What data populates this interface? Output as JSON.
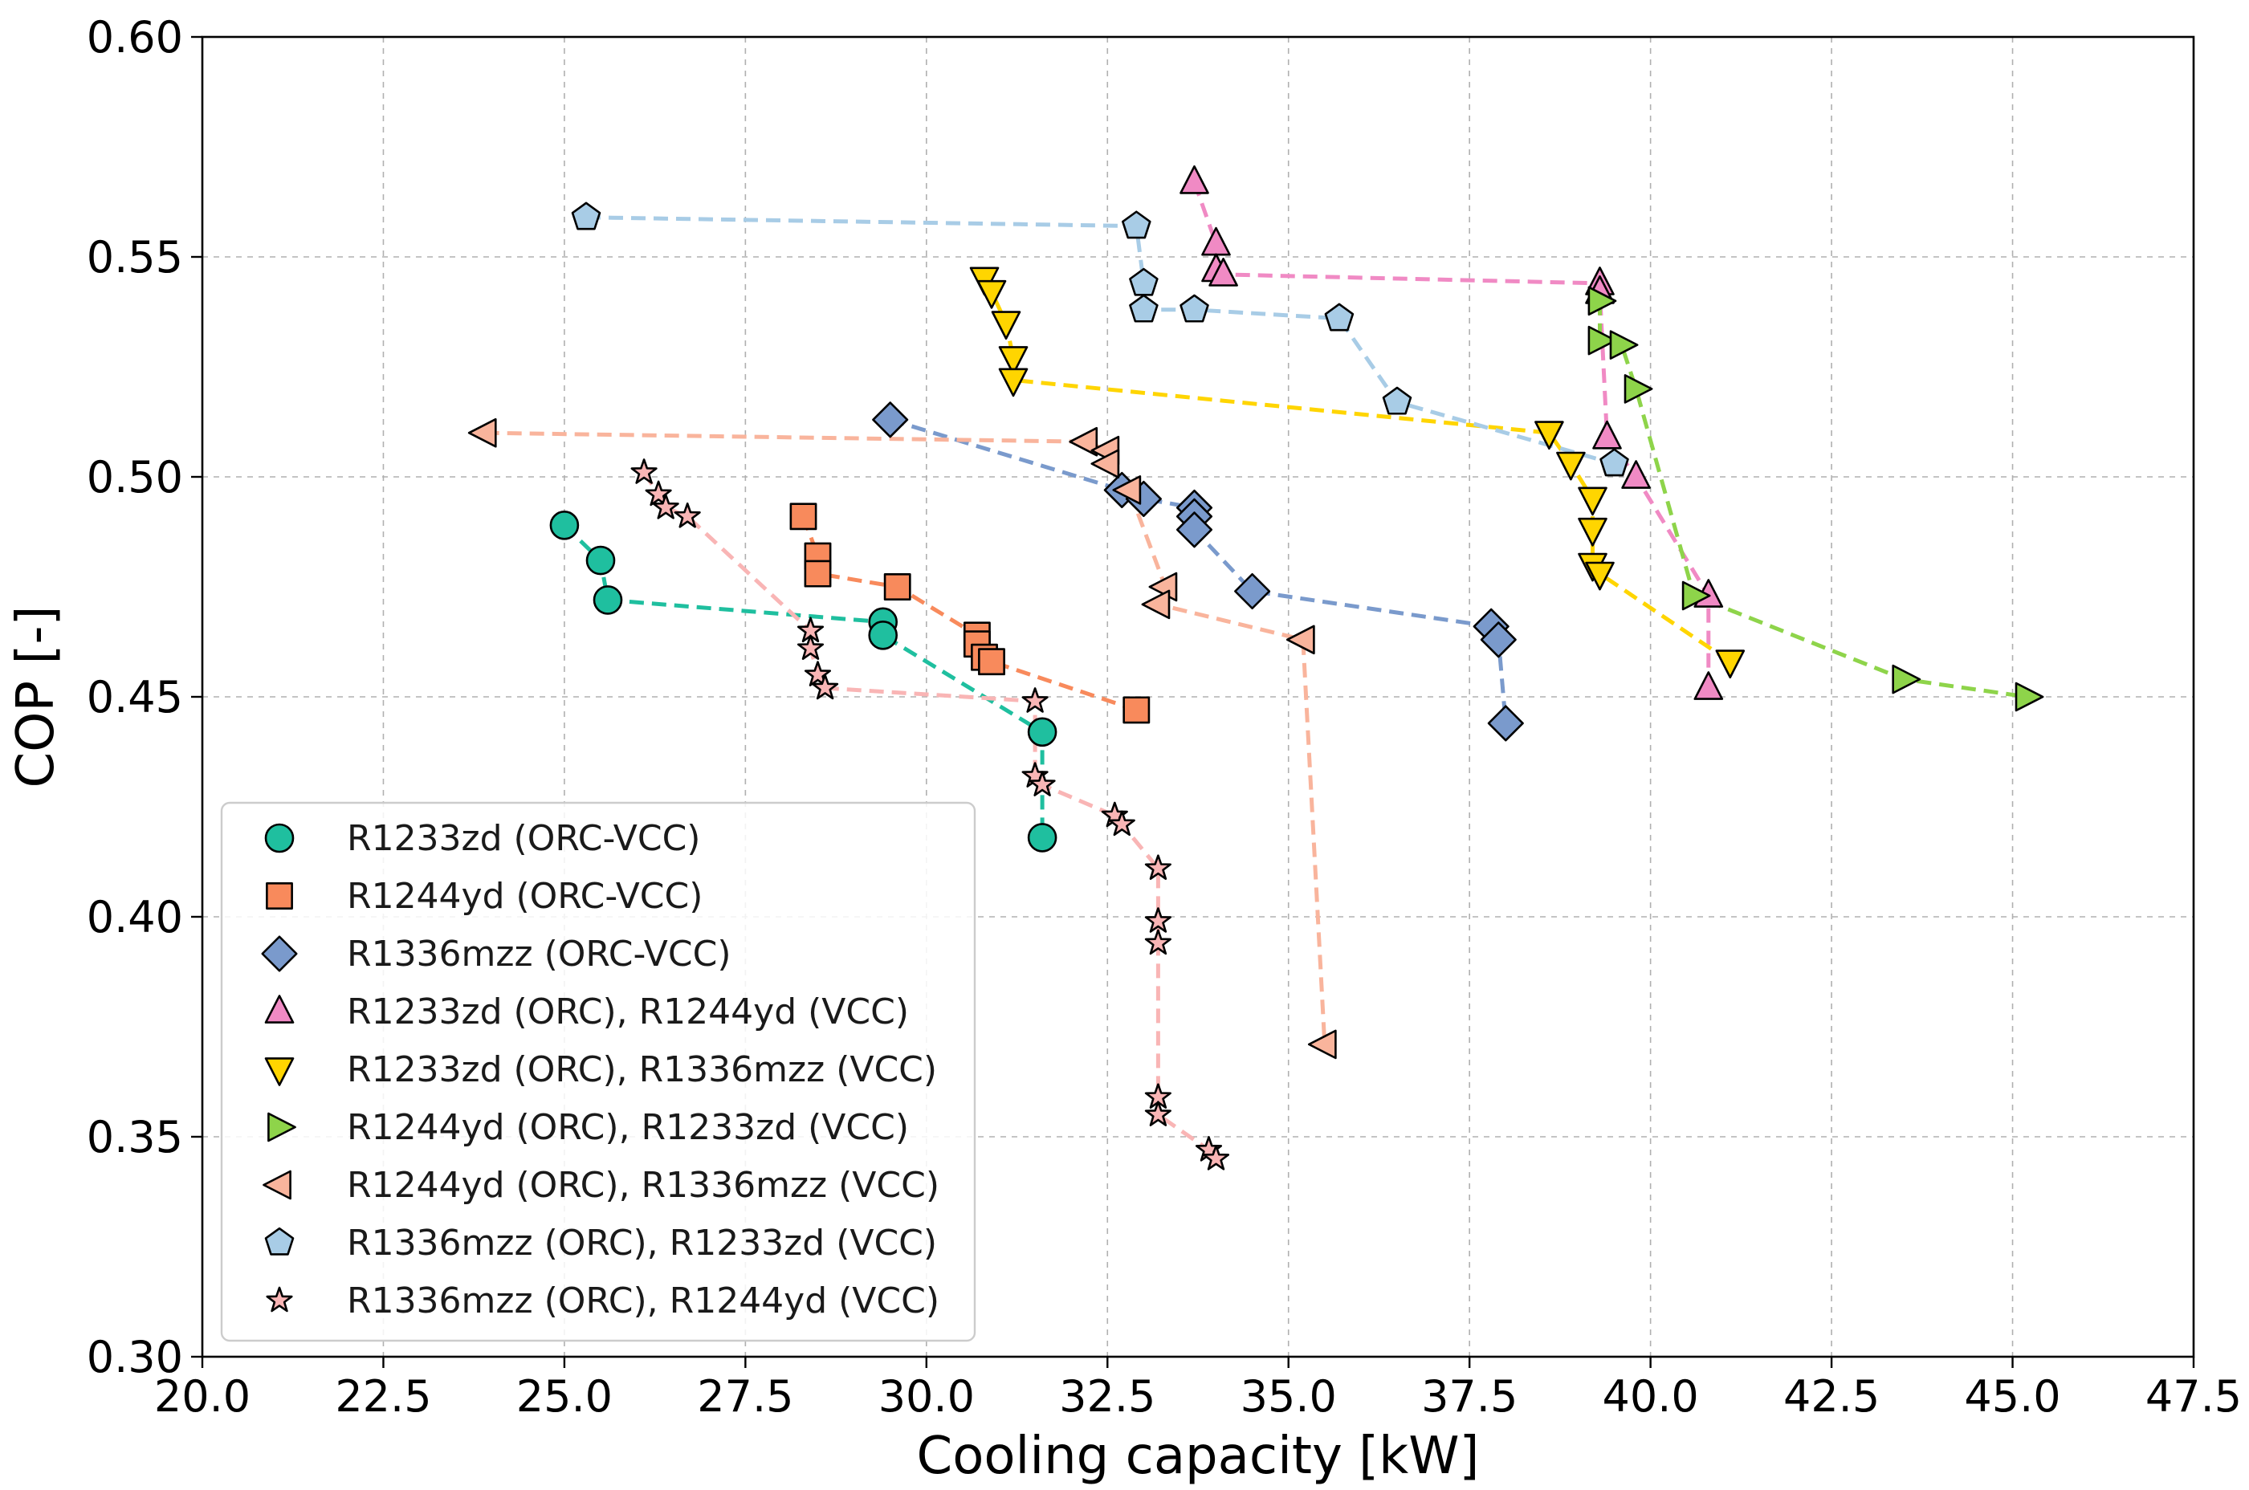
{
  "chart_data": {
    "type": "scatter",
    "title": "",
    "xlabel": "Cooling capacity [kW]",
    "ylabel": "COP [-]",
    "xlim": [
      20.0,
      47.5
    ],
    "ylim": [
      0.3,
      0.6
    ],
    "x_ticks": [
      20.0,
      22.5,
      25.0,
      27.5,
      30.0,
      32.5,
      35.0,
      37.5,
      40.0,
      42.5,
      45.0,
      47.5
    ],
    "x_tick_labels": [
      "20.0",
      "22.5",
      "25.0",
      "27.5",
      "30.0",
      "32.5",
      "35.0",
      "37.5",
      "40.0",
      "42.5",
      "45.0",
      "47.5"
    ],
    "y_ticks": [
      0.3,
      0.35,
      0.4,
      0.45,
      0.5,
      0.55,
      0.6
    ],
    "y_tick_labels": [
      "0.30",
      "0.35",
      "0.40",
      "0.45",
      "0.50",
      "0.55",
      "0.60"
    ],
    "grid": true,
    "legend_position": "lower-left",
    "series": [
      {
        "name": "R1233zd (ORC-VCC)",
        "marker": "circle",
        "color": "#1fbf9f",
        "points": [
          [
            25.0,
            0.489
          ],
          [
            25.5,
            0.481
          ],
          [
            25.6,
            0.472
          ],
          [
            29.4,
            0.467
          ],
          [
            29.4,
            0.464
          ],
          [
            31.6,
            0.442
          ],
          [
            31.6,
            0.418
          ]
        ]
      },
      {
        "name": "R1244yd (ORC-VCC)",
        "marker": "square",
        "color": "#f88a5c",
        "points": [
          [
            28.3,
            0.491
          ],
          [
            28.5,
            0.482
          ],
          [
            28.5,
            0.478
          ],
          [
            29.6,
            0.475
          ],
          [
            30.7,
            0.464
          ],
          [
            30.7,
            0.462
          ],
          [
            30.8,
            0.459
          ],
          [
            30.9,
            0.458
          ],
          [
            32.9,
            0.447
          ]
        ]
      },
      {
        "name": "R1336mzz (ORC-VCC)",
        "marker": "diamond",
        "color": "#7a9acc",
        "points": [
          [
            29.5,
            0.513
          ],
          [
            32.7,
            0.497
          ],
          [
            33.0,
            0.495
          ],
          [
            33.7,
            0.493
          ],
          [
            33.7,
            0.491
          ],
          [
            33.7,
            0.488
          ],
          [
            34.5,
            0.474
          ],
          [
            37.8,
            0.466
          ],
          [
            37.9,
            0.463
          ],
          [
            38.0,
            0.444
          ]
        ]
      },
      {
        "name": "R1233zd (ORC), R1244yd (VCC)",
        "marker": "triangle-up",
        "color": "#f08ac4",
        "points": [
          [
            33.7,
            0.567
          ],
          [
            34.0,
            0.553
          ],
          [
            34.0,
            0.547
          ],
          [
            34.1,
            0.546
          ],
          [
            39.3,
            0.544
          ],
          [
            39.3,
            0.542
          ],
          [
            39.4,
            0.509
          ],
          [
            39.8,
            0.5
          ],
          [
            40.8,
            0.473
          ],
          [
            40.8,
            0.452
          ]
        ]
      },
      {
        "name": "R1233zd (ORC), R1336mzz (VCC)",
        "marker": "triangle-down",
        "color": "#ffd500",
        "points": [
          [
            30.8,
            0.545
          ],
          [
            30.9,
            0.542
          ],
          [
            31.1,
            0.535
          ],
          [
            31.2,
            0.527
          ],
          [
            31.2,
            0.522
          ],
          [
            38.6,
            0.51
          ],
          [
            38.9,
            0.503
          ],
          [
            39.2,
            0.495
          ],
          [
            39.2,
            0.488
          ],
          [
            39.2,
            0.48
          ],
          [
            39.3,
            0.478
          ],
          [
            41.1,
            0.458
          ]
        ]
      },
      {
        "name": "R1244yd (ORC), R1233zd (VCC)",
        "marker": "triangle-right",
        "color": "#8ed44a",
        "points": [
          [
            39.3,
            0.54
          ],
          [
            39.3,
            0.531
          ],
          [
            39.6,
            0.53
          ],
          [
            39.8,
            0.52
          ],
          [
            40.6,
            0.473
          ],
          [
            43.5,
            0.454
          ],
          [
            45.2,
            0.45
          ]
        ]
      },
      {
        "name": "R1244yd (ORC), R1336mzz (VCC)",
        "marker": "triangle-left",
        "color": "#f9b49c",
        "points": [
          [
            23.9,
            0.51
          ],
          [
            32.2,
            0.508
          ],
          [
            32.5,
            0.506
          ],
          [
            32.5,
            0.503
          ],
          [
            32.8,
            0.497
          ],
          [
            33.3,
            0.475
          ],
          [
            33.2,
            0.471
          ],
          [
            35.2,
            0.463
          ],
          [
            35.5,
            0.371
          ]
        ]
      },
      {
        "name": "R1336mzz (ORC), R1233zd (VCC)",
        "marker": "pentagon",
        "color": "#a8cce6",
        "points": [
          [
            25.3,
            0.559
          ],
          [
            32.9,
            0.557
          ],
          [
            33.0,
            0.544
          ],
          [
            33.0,
            0.538
          ],
          [
            33.7,
            0.538
          ],
          [
            35.7,
            0.536
          ],
          [
            36.5,
            0.517
          ],
          [
            39.5,
            0.503
          ]
        ]
      },
      {
        "name": "R1336mzz (ORC), R1244yd (VCC)",
        "marker": "star",
        "color": "#f9b5b5",
        "points": [
          [
            26.1,
            0.501
          ],
          [
            26.3,
            0.496
          ],
          [
            26.4,
            0.493
          ],
          [
            26.7,
            0.491
          ],
          [
            28.4,
            0.465
          ],
          [
            28.4,
            0.461
          ],
          [
            28.5,
            0.455
          ],
          [
            28.6,
            0.452
          ],
          [
            31.5,
            0.449
          ],
          [
            31.5,
            0.432
          ],
          [
            31.6,
            0.43
          ],
          [
            32.6,
            0.423
          ],
          [
            32.7,
            0.421
          ],
          [
            33.2,
            0.411
          ],
          [
            33.2,
            0.399
          ],
          [
            33.2,
            0.394
          ],
          [
            33.2,
            0.359
          ],
          [
            33.2,
            0.355
          ],
          [
            33.9,
            0.347
          ],
          [
            34.0,
            0.345
          ]
        ]
      }
    ]
  }
}
